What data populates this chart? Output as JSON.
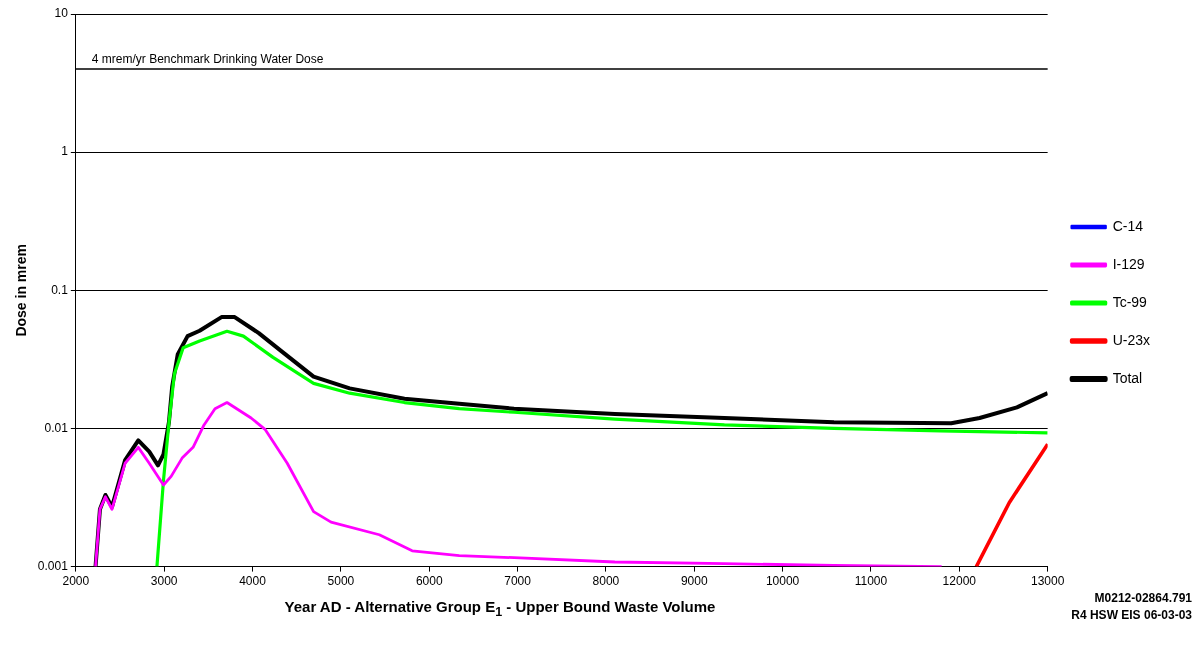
{
  "chart_data": {
    "type": "line",
    "xlabel": "Year AD - Alternative Group E$_{1}$ - Upper Bound Waste Volume",
    "ylabel": "Dose in mrem",
    "log": "y",
    "xlim": [
      2000,
      13000
    ],
    "xticks": [
      2000,
      3000,
      4000,
      5000,
      6000,
      7000,
      8000,
      9000,
      10000,
      11000,
      12000,
      13000
    ],
    "ylim": [
      0.001,
      10
    ],
    "yticks": [
      0.001,
      0.01,
      0.1,
      1,
      10
    ],
    "grid": "y",
    "legend": "right",
    "marker": "none",
    "line_style": "solid",
    "ref_lines": [
      {
        "axis": "y",
        "value": 4,
        "label": "4 mrem/yr Benchmark Drinking Water Dose",
        "color": "#000000"
      }
    ],
    "annotations": [
      "M0212-02864.791",
      "R4 HSW EIS 06-03-03"
    ],
    "series": [
      {
        "name": "C-14",
        "color": "#0000ff"
      },
      {
        "name": "I-129",
        "color": "#ff00ff",
        "x": [
          2223,
          2273,
          2335,
          2409,
          2558,
          2707,
          2831,
          2992,
          3079,
          3203,
          3327,
          3451,
          3575,
          3711,
          3984,
          4145,
          4393,
          4691,
          4889,
          5435,
          5807,
          6340,
          6960,
          8101,
          9341,
          10581,
          11800
        ],
        "values": [
          0.001,
          0.0026,
          0.0032,
          0.0026,
          0.0056,
          0.0073,
          0.0056,
          0.0039,
          0.0045,
          0.0061,
          0.0073,
          0.0106,
          0.0139,
          0.0154,
          0.0119,
          0.0098,
          0.0056,
          0.0025,
          0.0021,
          0.0017,
          0.0013,
          0.0012,
          0.00116,
          0.00108,
          0.00105,
          0.00102,
          0.001
        ]
      },
      {
        "name": "Tc-99",
        "color": "#00ff00",
        "x": [
          2918,
          2992,
          3054,
          3116,
          3215,
          3401,
          3711,
          3897,
          4232,
          4691,
          5100,
          5720,
          6340,
          6960,
          8101,
          9341,
          10581,
          11784,
          13000
        ],
        "values": [
          0.001,
          0.0042,
          0.011,
          0.0249,
          0.0384,
          0.043,
          0.0505,
          0.0466,
          0.0327,
          0.0212,
          0.018,
          0.0154,
          0.0139,
          0.0131,
          0.0117,
          0.0106,
          0.01,
          0.0096,
          0.0093
        ]
      },
      {
        "name": "U-23x",
        "color": "#ff0000",
        "x": [
          12193,
          12565,
          13000
        ],
        "values": [
          0.001,
          0.0029,
          0.0077
        ]
      },
      {
        "name": "Total",
        "color": "#000000",
        "x": [
          2223,
          2273,
          2335,
          2409,
          2558,
          2707,
          2831,
          2930,
          2992,
          3054,
          3091,
          3153,
          3265,
          3401,
          3649,
          3798,
          4071,
          4319,
          4691,
          5100,
          5720,
          6340,
          6960,
          8101,
          9341,
          10581,
          11908,
          12230,
          12652,
          13000
        ],
        "values": [
          0.001,
          0.0026,
          0.0033,
          0.0027,
          0.0059,
          0.0082,
          0.0068,
          0.0054,
          0.0065,
          0.0111,
          0.0202,
          0.0343,
          0.0466,
          0.051,
          0.064,
          0.064,
          0.049,
          0.0366,
          0.0237,
          0.0195,
          0.0164,
          0.0151,
          0.0139,
          0.0127,
          0.0119,
          0.0111,
          0.0109,
          0.0119,
          0.0142,
          0.018
        ]
      }
    ]
  }
}
